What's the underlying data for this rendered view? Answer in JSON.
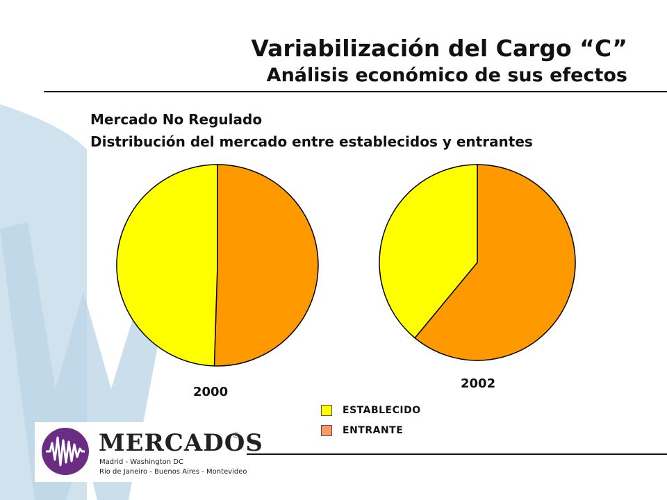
{
  "header": {
    "title": "Variabilización del Cargo “C”",
    "subtitle": "Análisis económico de sus efectos"
  },
  "section": {
    "line1": "Mercado No Regulado",
    "line2": "Distribución del mercado entre establecidos y entrantes"
  },
  "chart_data": [
    {
      "type": "pie",
      "title": "2000",
      "labels": [
        "ESTABLECIDO",
        "ENTRANTE"
      ],
      "values": [
        49.5,
        50.5
      ],
      "colors": [
        "#ffff00",
        "#ff9900"
      ]
    },
    {
      "type": "pie",
      "title": "2002",
      "labels": [
        "ESTABLECIDO",
        "ENTRANTE"
      ],
      "values": [
        39,
        61
      ],
      "colors": [
        "#ffff00",
        "#ff9900"
      ]
    }
  ],
  "legend": {
    "placement": "bottom-center",
    "items": [
      {
        "label": "ESTABLECIDO",
        "color": "#ffff00"
      },
      {
        "label": "ENTRANTE",
        "color": "#ff9966"
      }
    ]
  },
  "logo": {
    "name": "MERCADOS",
    "cities_line1": "Madrid - Washington DC",
    "cities_line2": "Rio de Janeiro - Buenos Aires - Montevideo"
  },
  "colors": {
    "watermark": "#c5dbe9",
    "logo_purple": "#6b2d83"
  }
}
